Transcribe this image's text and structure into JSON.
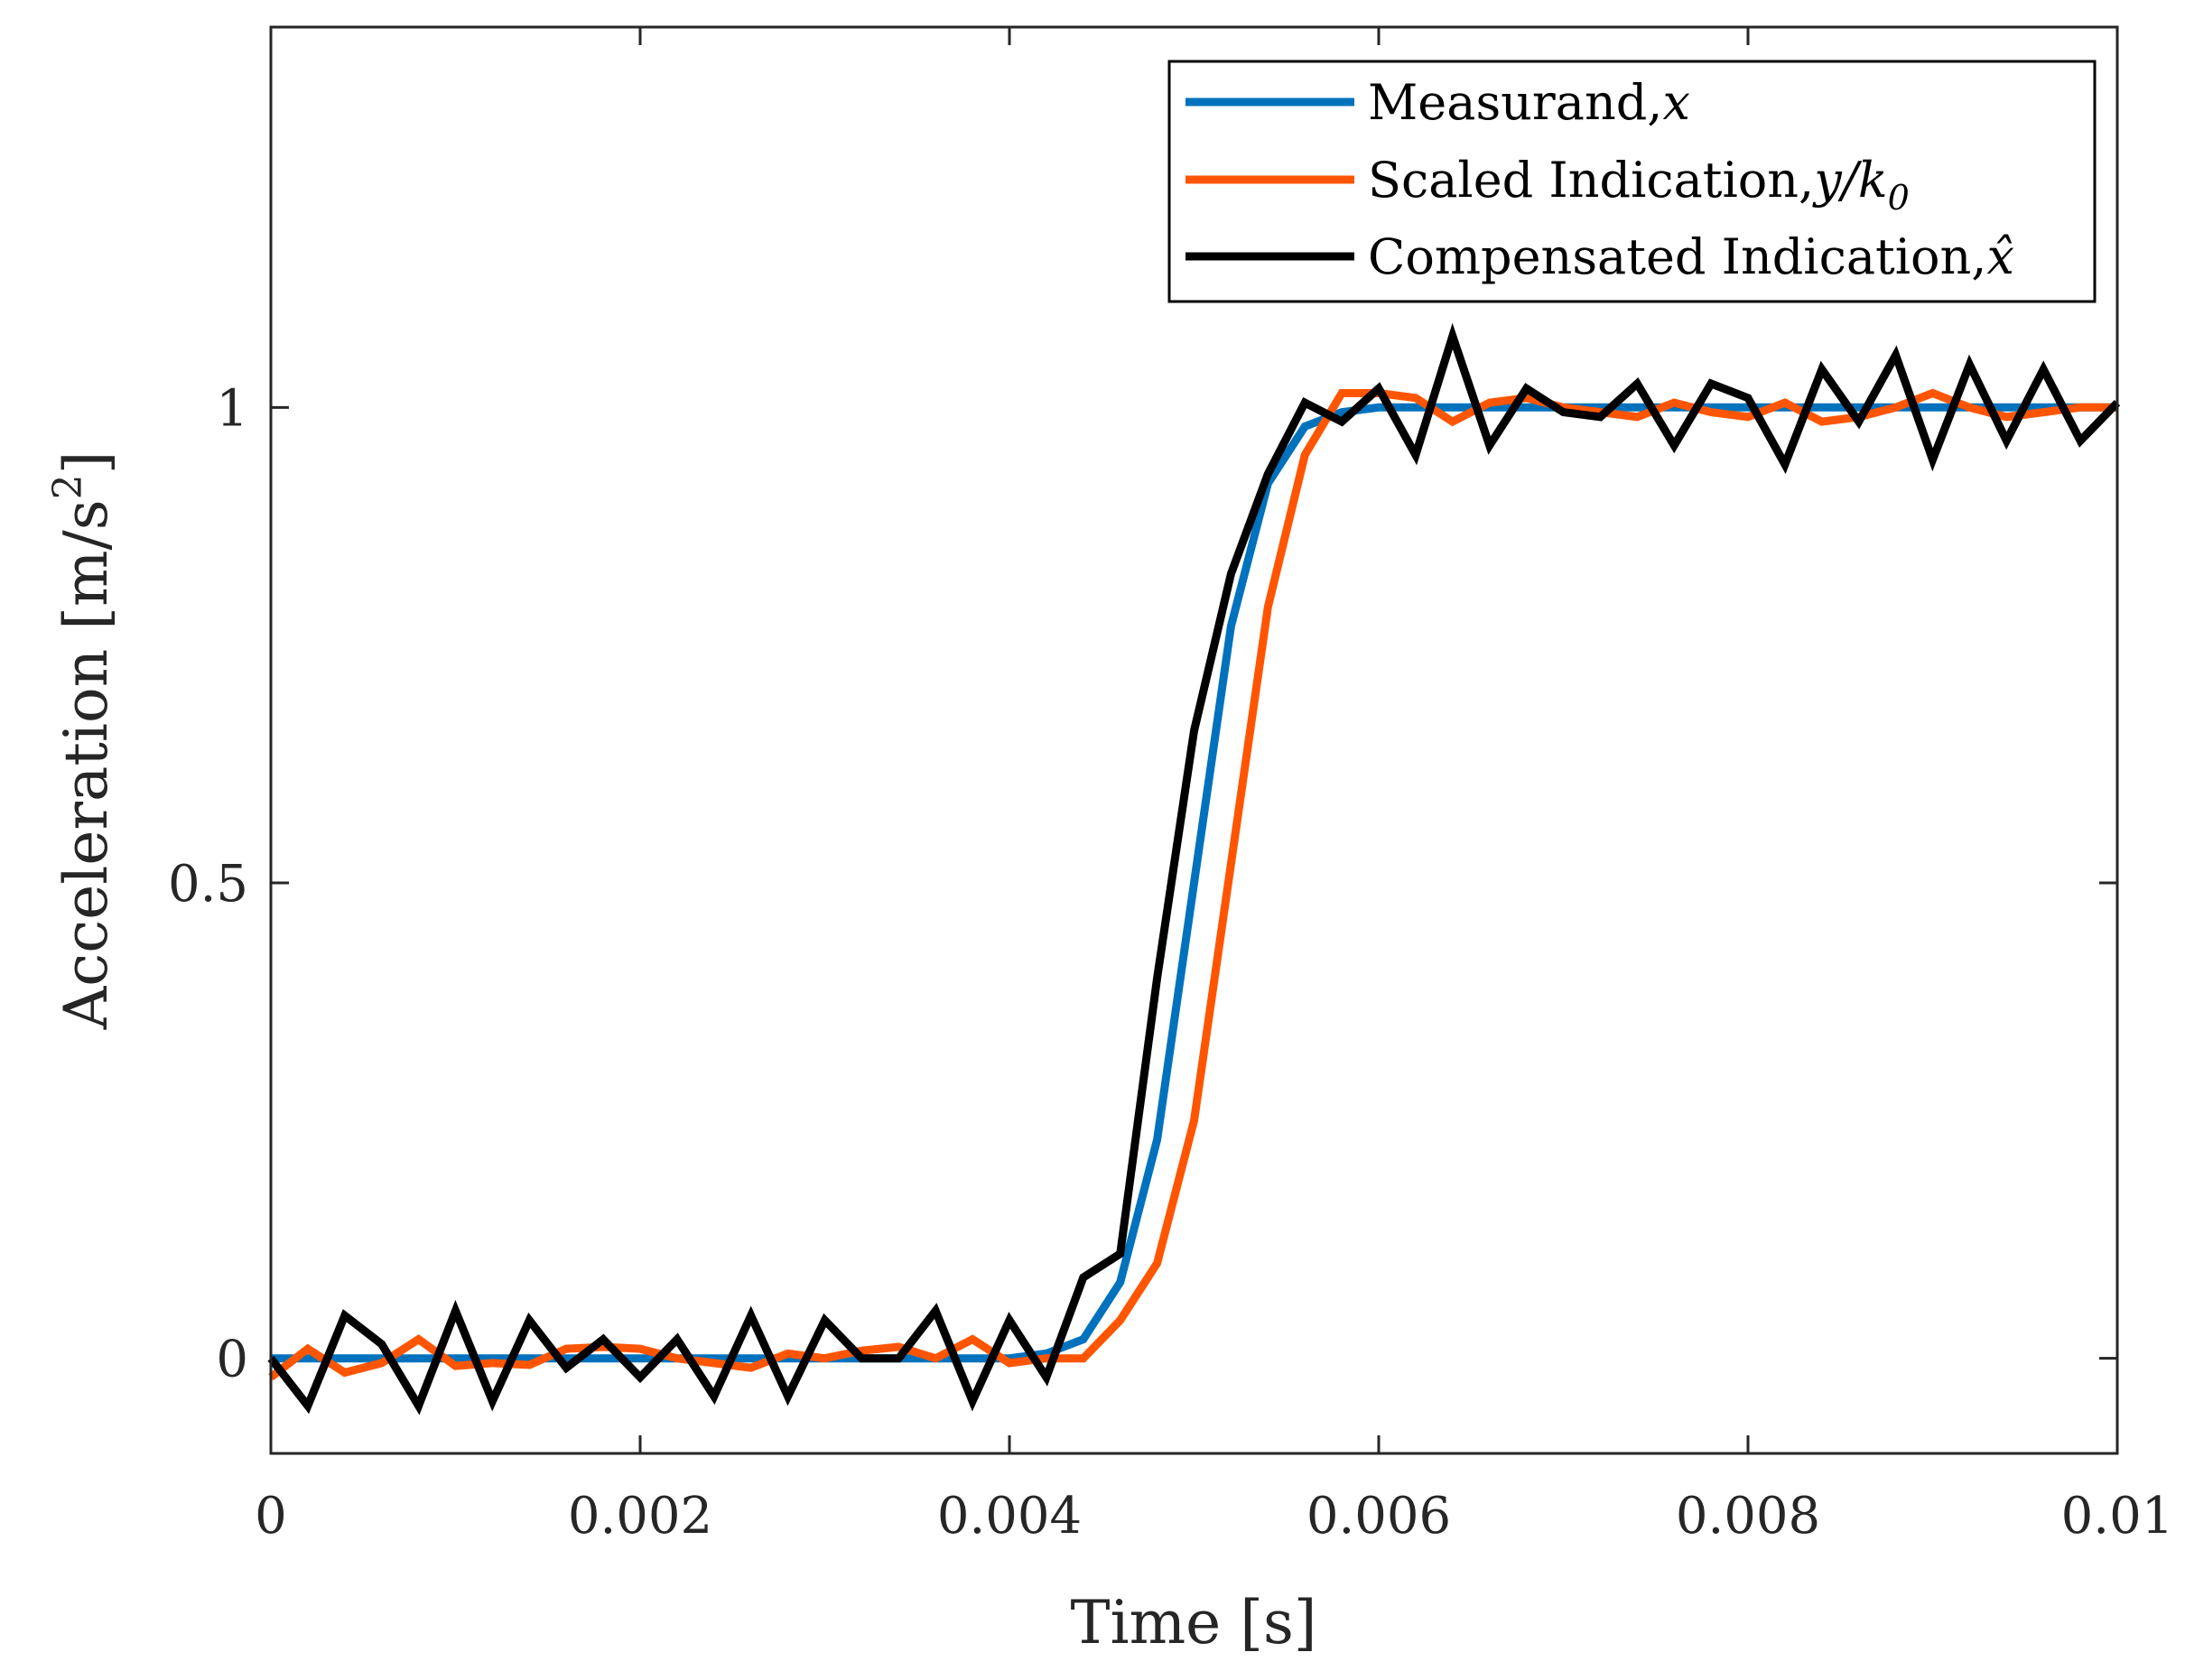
{
  "chart_data": {
    "type": "line",
    "title": "",
    "xlabel": "Time [s]",
    "ylabel_main": "Acceleration [m/s",
    "ylabel_sup": "2",
    "ylabel_end": "]",
    "xlim": [
      0,
      0.01
    ],
    "ylim": [
      -0.1,
      1.4
    ],
    "x_ticks": [
      0,
      0.002,
      0.004,
      0.006,
      0.008,
      0.01
    ],
    "x_tick_labels": [
      "0",
      "0.002",
      "0.004",
      "0.006",
      "0.008",
      "0.01"
    ],
    "y_ticks": [
      0,
      0.5,
      1
    ],
    "y_tick_labels": [
      "0",
      "0.5",
      "1"
    ],
    "grid": false,
    "legend_position": "top-right",
    "legend": [
      {
        "text": "Measurand,",
        "math": "x",
        "sub": ""
      },
      {
        "text": "Scaled Indication,",
        "math": "y/k",
        "sub": "0"
      },
      {
        "text": "Compensated Indication,",
        "math": "x̂",
        "sub": ""
      }
    ],
    "x": [
      0,
      0.0002,
      0.0004,
      0.0006,
      0.0008,
      0.001,
      0.0012,
      0.0014,
      0.0016,
      0.0018,
      0.002,
      0.0022,
      0.0024,
      0.0026,
      0.0028,
      0.003,
      0.0032,
      0.0034,
      0.0036,
      0.0038,
      0.004,
      0.0042,
      0.0044,
      0.0046,
      0.0048,
      0.005,
      0.0052,
      0.0054,
      0.0056,
      0.0058,
      0.006,
      0.0062,
      0.0064,
      0.0066,
      0.0068,
      0.007,
      0.0072,
      0.0074,
      0.0076,
      0.0078,
      0.008,
      0.0082,
      0.0084,
      0.0086,
      0.0088,
      0.009,
      0.0092,
      0.0094,
      0.0096,
      0.0098,
      0.01
    ],
    "series": [
      {
        "name": "Measurand, x",
        "color": "#0072BD",
        "values": [
          0,
          0,
          0,
          0,
          0,
          0,
          0,
          0,
          0,
          0,
          0,
          0,
          0,
          0,
          0,
          0,
          0,
          0,
          0,
          0,
          0,
          0.005,
          0.02,
          0.08,
          0.23,
          0.5,
          0.77,
          0.92,
          0.98,
          0.995,
          1,
          1,
          1,
          1,
          1,
          1,
          1,
          1,
          1,
          1,
          1,
          1,
          1,
          1,
          1,
          1,
          1,
          1,
          1,
          1,
          1
        ]
      },
      {
        "name": "Scaled Indication, y/k0",
        "color": "#FF5500",
        "values": [
          -0.02,
          0.01,
          -0.015,
          -0.005,
          0.02,
          -0.008,
          -0.005,
          -0.007,
          0.01,
          0.012,
          0.01,
          0.0,
          -0.005,
          -0.01,
          0.005,
          0.0,
          0.008,
          0.012,
          0.0,
          0.02,
          -0.005,
          0.0,
          0.0,
          0.04,
          0.1,
          0.25,
          0.52,
          0.79,
          0.95,
          1.015,
          1.015,
          1.01,
          0.985,
          1.005,
          1.01,
          1.0,
          0.995,
          0.99,
          1.005,
          0.995,
          0.99,
          1.005,
          0.985,
          0.99,
          1.0,
          1.015,
          1.0,
          0.99,
          0.995,
          1.0,
          1.0
        ]
      },
      {
        "name": "Compensated Indication, x hat",
        "color": "#000000",
        "values": [
          0,
          -0.05,
          0.045,
          0.015,
          -0.05,
          0.05,
          -0.045,
          0.04,
          -0.01,
          0.02,
          -0.02,
          0.02,
          -0.04,
          0.045,
          -0.04,
          0.04,
          0.0,
          0.0,
          0.05,
          -0.045,
          0.04,
          -0.02,
          0.085,
          0.11,
          0.4,
          0.66,
          0.825,
          0.93,
          1.005,
          0.985,
          1.02,
          0.95,
          1.075,
          0.96,
          1.02,
          0.995,
          0.99,
          1.025,
          0.96,
          1.025,
          1.01,
          0.94,
          1.04,
          0.985,
          1.055,
          0.945,
          1.045,
          0.965,
          1.04,
          0.965,
          1.005
        ]
      }
    ]
  }
}
